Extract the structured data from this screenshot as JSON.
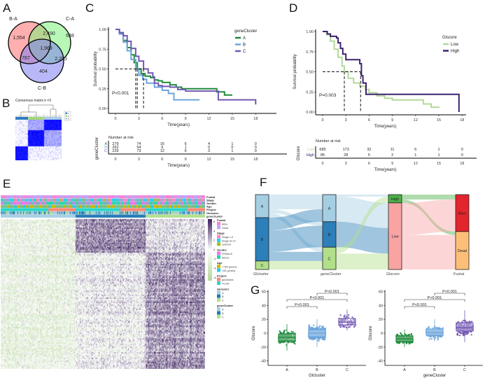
{
  "panel_labels": {
    "A": "A",
    "B": "B",
    "C": "C",
    "D": "D",
    "E": "E",
    "F": "F",
    "G": "G"
  },
  "chart_data": [
    {
      "type": "venn",
      "sets": [
        "B-A",
        "C-A",
        "C-B"
      ],
      "set_colors": [
        "#ff6e6e",
        "#7cf27c",
        "#7d7df3"
      ],
      "regions": [
        "1,554",
        "2,490",
        "638",
        "1,969",
        "787",
        "2,295",
        "404"
      ]
    },
    {
      "type": "heatmap",
      "title": "Consensus matrix k =3",
      "clusters": [
        "1",
        "2",
        "3"
      ],
      "cluster_colors": [
        "#2f7ec1",
        "#a6d77a",
        "#a8cde8"
      ],
      "color": "#1a1aff"
    },
    {
      "type": "line",
      "subtype": "kaplan-meier",
      "legend_title": "geneCluster",
      "xlabel": "Time(years)",
      "ylabel": "Survival probability",
      "xlim": [
        0,
        18
      ],
      "ylim": [
        0,
        1
      ],
      "xticks": [
        "0",
        "3",
        "6",
        "9",
        "12",
        "15",
        "18"
      ],
      "yticks": [
        "0.00",
        "0.25",
        "0.50",
        "0.75",
        "1.00"
      ],
      "pvalue": "P<0.001",
      "series": [
        {
          "name": "A",
          "color": "#1e8a3c",
          "median": 2.8,
          "points": [
            [
              0,
              1
            ],
            [
              0.5,
              0.95
            ],
            [
              1,
              0.86
            ],
            [
              1.5,
              0.77
            ],
            [
              2,
              0.68
            ],
            [
              2.4,
              0.58
            ],
            [
              2.8,
              0.5
            ],
            [
              3.3,
              0.44
            ],
            [
              3.8,
              0.41
            ],
            [
              4.5,
              0.39
            ],
            [
              5,
              0.36
            ],
            [
              5.5,
              0.35
            ],
            [
              6,
              0.33
            ],
            [
              7,
              0.3
            ],
            [
              7.8,
              0.27
            ],
            [
              8.5,
              0.25
            ],
            [
              12.5,
              0.25
            ],
            [
              13,
              0.21
            ],
            [
              14,
              0.17
            ],
            [
              15,
              0.17
            ]
          ]
        },
        {
          "name": "B",
          "color": "#6aa5dc",
          "median": 2.6,
          "points": [
            [
              0,
              1
            ],
            [
              0.5,
              0.94
            ],
            [
              1,
              0.84
            ],
            [
              1.5,
              0.73
            ],
            [
              2,
              0.62
            ],
            [
              2.6,
              0.5
            ],
            [
              3,
              0.42
            ],
            [
              3.5,
              0.37
            ],
            [
              4,
              0.32
            ],
            [
              5,
              0.27
            ],
            [
              6,
              0.23
            ],
            [
              6.8,
              0.19
            ],
            [
              7.5,
              0.11
            ],
            [
              10.8,
              0.11
            ]
          ]
        },
        {
          "name": "C",
          "color": "#7257b3",
          "median": 3.6,
          "points": [
            [
              0,
              1
            ],
            [
              0.5,
              0.96
            ],
            [
              1,
              0.92
            ],
            [
              1.5,
              0.85
            ],
            [
              2,
              0.76
            ],
            [
              2.6,
              0.66
            ],
            [
              3,
              0.6
            ],
            [
              3.6,
              0.5
            ],
            [
              4.2,
              0.45
            ],
            [
              4.8,
              0.4
            ],
            [
              5,
              0.32
            ],
            [
              5.5,
              0.29
            ],
            [
              6,
              0.28
            ],
            [
              7,
              0.27
            ],
            [
              8,
              0.24
            ],
            [
              9,
              0.22
            ],
            [
              12.5,
              0.22
            ],
            [
              13.2,
              0.11
            ],
            [
              18,
              0.11
            ],
            [
              18,
              0.05
            ]
          ]
        }
      ],
      "risk_table": {
        "title": "Number at risk",
        "ylabel": "geneCluster",
        "rows": [
          {
            "name": "A",
            "values": [
              279,
              74,
              16,
              6,
              4,
              1,
              0
            ]
          },
          {
            "name": "B",
            "values": [
              262,
              54,
              9,
              1,
              0,
              0,
              0
            ]
          },
          {
            "name": "C",
            "values": [
              229,
              73,
              12,
              6,
              3,
              1,
              0
            ]
          }
        ]
      }
    },
    {
      "type": "line",
      "subtype": "kaplan-meier",
      "legend_title": "Glscore",
      "xlabel": "Time(years)",
      "ylabel": "Survival probability",
      "xlim": [
        0,
        18
      ],
      "ylim": [
        0,
        1
      ],
      "xticks": [
        "0",
        "3",
        "6",
        "9",
        "12",
        "15",
        "18"
      ],
      "yticks": [
        "0.00",
        "0.25",
        "0.50",
        "0.75",
        "1.00"
      ],
      "pvalue": "P=0.003",
      "series": [
        {
          "name": "Low",
          "color": "#b3d99a",
          "median": 2.8,
          "points": [
            [
              0,
              1
            ],
            [
              0.5,
              0.96
            ],
            [
              1,
              0.88
            ],
            [
              1.5,
              0.78
            ],
            [
              2,
              0.68
            ],
            [
              2.5,
              0.57
            ],
            [
              2.8,
              0.5
            ],
            [
              3.3,
              0.42
            ],
            [
              4,
              0.36
            ],
            [
              4.8,
              0.32
            ],
            [
              5.5,
              0.28
            ],
            [
              6,
              0.24
            ],
            [
              7,
              0.2
            ],
            [
              8,
              0.17
            ],
            [
              9,
              0.15
            ],
            [
              12.5,
              0.15
            ],
            [
              13,
              0.1
            ],
            [
              14,
              0.06
            ],
            [
              15,
              0.05
            ]
          ]
        },
        {
          "name": "High",
          "color": "#3d2170",
          "median": 4.9,
          "points": [
            [
              0,
              1
            ],
            [
              0.6,
              0.97
            ],
            [
              1,
              0.94
            ],
            [
              1.8,
              0.92
            ],
            [
              2,
              0.86
            ],
            [
              2.3,
              0.79
            ],
            [
              2.6,
              0.72
            ],
            [
              3,
              0.65
            ],
            [
              4.6,
              0.65
            ],
            [
              4.8,
              0.6
            ],
            [
              5,
              0.45
            ],
            [
              5.2,
              0.36
            ],
            [
              5.6,
              0.22
            ],
            [
              17.6,
              0.22
            ],
            [
              17.6,
              0
            ]
          ]
        }
      ],
      "risk_table": {
        "title": "Number at risk",
        "ylabel": "Glscore",
        "rows": [
          {
            "name": "Low",
            "values": [
              685,
              173,
              32,
              11,
              6,
              1,
              0
            ]
          },
          {
            "name": "High",
            "values": [
              85,
              28,
              5,
              2,
              1,
              1,
              0
            ]
          }
        ]
      }
    },
    {
      "type": "heatmap",
      "annotation_rows": [
        "Fustat",
        "Stage",
        "Gender",
        "Age",
        "Project",
        "Glcluster",
        "geneCluster"
      ],
      "colorbar_ticks": [
        "6",
        "4",
        "2",
        "0",
        "-2",
        "-4",
        "-6"
      ],
      "colorbar_colors": {
        "high": "#3b1f5e",
        "mid": "#ffffff",
        "low": "#b5d69a"
      },
      "legend": [
        {
          "title": "Fustat",
          "items": [
            {
              "label": "Alive",
              "color": "#ff7fd0"
            },
            {
              "label": "Dead",
              "color": "#b7a7ff"
            }
          ]
        },
        {
          "title": "Stage",
          "items": [
            {
              "label": "Stage I–II",
              "color": "#ff86c0"
            },
            {
              "label": "Stage III–IV",
              "color": "#1ad4f5"
            },
            {
              "label": "unknow",
              "color": "#a7bd1a"
            }
          ]
        },
        {
          "title": "Gender",
          "items": [
            {
              "label": "FEMALE",
              "color": "#ff6bf0"
            },
            {
              "label": "MALE",
              "color": "#1ed9a4"
            }
          ]
        },
        {
          "title": "Age",
          "items": [
            {
              "label": "<=65 (years)",
              "color": "#d2b800"
            },
            {
              "label": ">65 (years)",
              "color": "#22c8ff"
            }
          ]
        },
        {
          "title": "Project",
          "items": [
            {
              "label": "geoMatrix",
              "color": "#fb8572"
            },
            {
              "label": "TCGA",
              "color": "#22d6c8"
            }
          ]
        },
        {
          "title": "Glcluster",
          "items": [
            {
              "label": "A",
              "color": "#a6cee3"
            },
            {
              "label": "B",
              "color": "#1f78b4"
            },
            {
              "label": "C",
              "color": "#b2df8a"
            }
          ]
        },
        {
          "title": "geneCluster",
          "items": [
            {
              "label": "A",
              "color": "#a6cee3"
            },
            {
              "label": "B",
              "color": "#1f78b4"
            },
            {
              "label": "C",
              "color": "#b2df8a"
            }
          ]
        }
      ]
    },
    {
      "type": "sankey",
      "columns": [
        {
          "title": "Glcluster",
          "nodes": [
            {
              "name": "A",
              "value": 237,
              "color": "#a6cee3"
            },
            {
              "name": "B",
              "value": 446,
              "color": "#2c7fb8"
            },
            {
              "name": "C",
              "value": 87,
              "color": "#b2df8a"
            }
          ]
        },
        {
          "title": "geneCluster",
          "nodes": [
            {
              "name": "A",
              "value": 279,
              "color": "#a6cee3"
            },
            {
              "name": "B",
              "value": 262,
              "color": "#2c7fb8"
            },
            {
              "name": "C",
              "value": 229,
              "color": "#b2df8a"
            }
          ]
        },
        {
          "title": "Glscore",
          "nodes": [
            {
              "name": "High",
              "value": 85,
              "color": "#4daf4a"
            },
            {
              "name": "Low",
              "value": 685,
              "color": "#f9a3a3"
            }
          ]
        },
        {
          "title": "Fustat",
          "nodes": [
            {
              "name": "Alive",
              "value": 380,
              "color": "#e3262c"
            },
            {
              "name": "Dead",
              "value": 390,
              "color": "#fdbf78"
            }
          ]
        }
      ],
      "flows": [
        {
          "stage": 0,
          "source": "A",
          "target": "A",
          "value": 150
        },
        {
          "stage": 0,
          "source": "A",
          "target": "B",
          "value": 40
        },
        {
          "stage": 0,
          "source": "A",
          "target": "C",
          "value": 47
        },
        {
          "stage": 0,
          "source": "B",
          "target": "A",
          "value": 129
        },
        {
          "stage": 0,
          "source": "B",
          "target": "B",
          "value": 222
        },
        {
          "stage": 0,
          "source": "B",
          "target": "C",
          "value": 95
        },
        {
          "stage": 0,
          "source": "C",
          "target": "C",
          "value": 87
        },
        {
          "stage": 1,
          "source": "A",
          "target": "High",
          "value": 20
        },
        {
          "stage": 1,
          "source": "A",
          "target": "Low",
          "value": 259
        },
        {
          "stage": 1,
          "source": "B",
          "target": "Low",
          "value": 262
        },
        {
          "stage": 1,
          "source": "C",
          "target": "High",
          "value": 65
        },
        {
          "stage": 1,
          "source": "C",
          "target": "Low",
          "value": 164
        },
        {
          "stage": 2,
          "source": "High",
          "target": "Alive",
          "value": 50
        },
        {
          "stage": 2,
          "source": "High",
          "target": "Dead",
          "value": 35
        },
        {
          "stage": 2,
          "source": "Low",
          "target": "Alive",
          "value": 330
        },
        {
          "stage": 2,
          "source": "Low",
          "target": "Dead",
          "value": 355
        }
      ]
    },
    {
      "type": "box",
      "xlabel": "Glcluster",
      "ylabel": "Glscore",
      "ylim": [
        -45,
        62
      ],
      "yticks": [
        "60",
        "40",
        "20",
        "0",
        "-20",
        "-40"
      ],
      "groups": [
        {
          "name": "A",
          "color": "#1e8a3c",
          "n": 240,
          "median": -6,
          "q1": -11,
          "q3": -1,
          "whisker_low": -25,
          "whisker_high": 13,
          "min": -42,
          "max": 19
        },
        {
          "name": "B",
          "color": "#6aa5dc",
          "n": 450,
          "median": 0,
          "q1": -5,
          "q3": 5,
          "whisker_low": -20,
          "whisker_high": 20,
          "min": -22,
          "max": 33
        },
        {
          "name": "C",
          "color": "#7257b3",
          "n": 90,
          "median": 16,
          "q1": 12,
          "q3": 21,
          "whisker_low": 4,
          "whisker_high": 34,
          "min": -8,
          "max": 35
        }
      ],
      "comparisons": [
        {
          "pair": [
            "A",
            "B"
          ],
          "label": "P<0.001"
        },
        {
          "pair": [
            "A",
            "C"
          ],
          "label": "P<0.001"
        },
        {
          "pair": [
            "B",
            "C"
          ],
          "label": "P<0.001"
        }
      ]
    },
    {
      "type": "box",
      "xlabel": "geneCluster",
      "ylabel": "Glscore",
      "ylim": [
        -45,
        62
      ],
      "yticks": [
        "60",
        "40",
        "20",
        "0",
        "-20",
        "-40"
      ],
      "groups": [
        {
          "name": "A",
          "color": "#1e8a3c",
          "n": 279,
          "median": -8,
          "q1": -12,
          "q3": -4,
          "whisker_low": -20,
          "whisker_high": 5,
          "min": -42,
          "max": 6
        },
        {
          "name": "B",
          "color": "#6aa5dc",
          "n": 262,
          "median": 1,
          "q1": -3,
          "q3": 6,
          "whisker_low": -12,
          "whisker_high": 20,
          "min": -13,
          "max": 25
        },
        {
          "name": "C",
          "color": "#7257b3",
          "n": 229,
          "median": 8,
          "q1": 3,
          "q3": 15,
          "whisker_low": -13,
          "whisker_high": 33,
          "min": -15,
          "max": 35
        }
      ],
      "comparisons": [
        {
          "pair": [
            "A",
            "B"
          ],
          "label": "P<0.001"
        },
        {
          "pair": [
            "A",
            "C"
          ],
          "label": "P<0.001"
        },
        {
          "pair": [
            "B",
            "C"
          ],
          "label": "P<0.001"
        }
      ]
    }
  ]
}
